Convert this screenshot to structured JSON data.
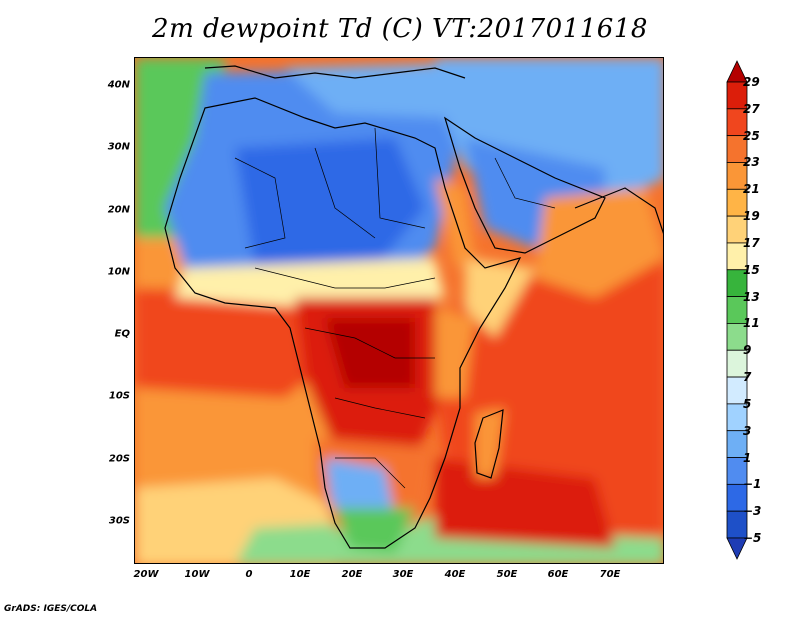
{
  "title": "2m dewpoint Td (C) VT:2017011618",
  "credit": "GrADS: IGES/COLA",
  "chart_data": {
    "type": "heatmap",
    "variable": "2m dewpoint Td (C)",
    "valid_time": "2017011618",
    "lon_range": [
      -23,
      80
    ],
    "lat_range": [
      -36,
      45
    ],
    "x_ticks": [
      "20W",
      "10W",
      "0",
      "10E",
      "20E",
      "30E",
      "40E",
      "50E",
      "60E",
      "70E"
    ],
    "y_ticks": [
      "40N",
      "30N",
      "20N",
      "10N",
      "EQ",
      "10S",
      "20S",
      "30S"
    ],
    "colorbar": {
      "labels": [
        "29",
        "27",
        "25",
        "23",
        "21",
        "19",
        "17",
        "15",
        "13",
        "11",
        "9",
        "7",
        "5",
        "3",
        "1",
        "−1",
        "−3",
        "−5"
      ],
      "colors": [
        "#b40000",
        "#dc1e0a",
        "#f0461e",
        "#f5732d",
        "#fa9637",
        "#ffb446",
        "#ffd278",
        "#fff0aa",
        "#37b43c",
        "#5ac85a",
        "#8cdc8c",
        "#dcf5dc",
        "#d2ebff",
        "#a0d2ff",
        "#6eaff5",
        "#508cf0",
        "#2d69e6",
        "#1e50c8",
        "#1e3cb4"
      ]
    }
  }
}
